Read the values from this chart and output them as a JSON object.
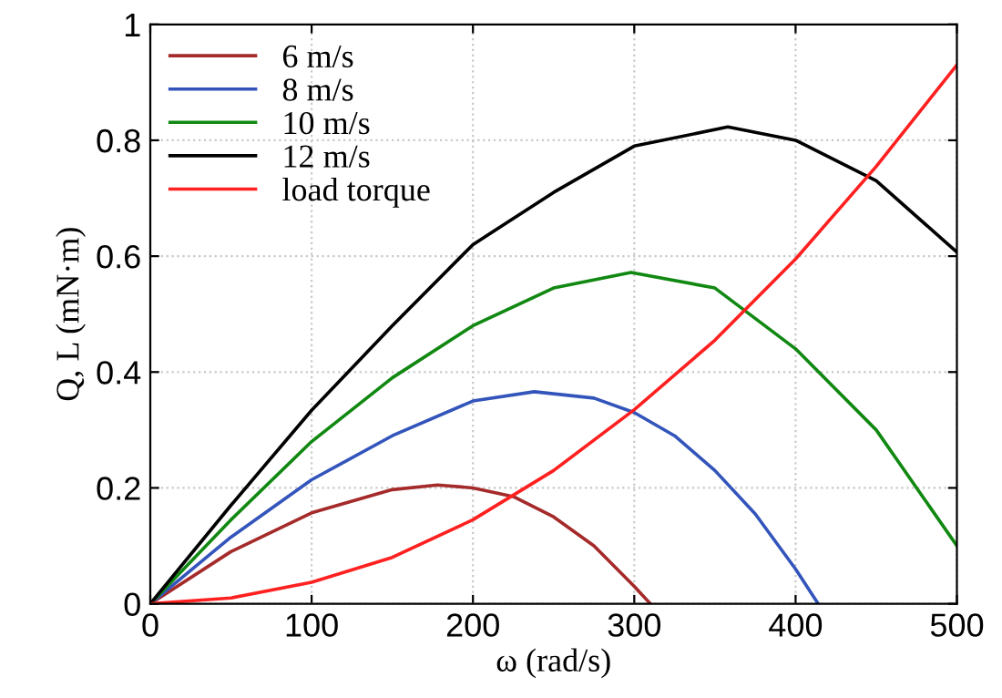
{
  "chart_data": {
    "type": "line",
    "xlabel": "ω (rad/s)",
    "ylabel": "Q, L (mN·m)",
    "xlim": [
      0,
      500
    ],
    "ylim": [
      0,
      1
    ],
    "xticks": [
      0,
      100,
      200,
      300,
      400,
      500
    ],
    "yticks": [
      0,
      0.2,
      0.4,
      0.6,
      0.8,
      1
    ],
    "grid": true,
    "legend": "top left",
    "marker": "none",
    "line_style": "solid",
    "series": [
      {
        "name": "6 m/s",
        "color": "#a52a2a",
        "x": [
          0,
          50,
          100,
          150,
          178,
          200,
          225,
          250,
          275,
          300,
          310
        ],
        "values": [
          0,
          0.09,
          0.157,
          0.197,
          0.205,
          0.2,
          0.185,
          0.15,
          0.1,
          0.03,
          0
        ]
      },
      {
        "name": "8 m/s",
        "color": "#3355bb",
        "x": [
          0,
          50,
          100,
          150,
          200,
          238,
          275,
          300,
          325,
          350,
          375,
          400,
          414
        ],
        "values": [
          0,
          0.115,
          0.214,
          0.29,
          0.35,
          0.366,
          0.355,
          0.33,
          0.29,
          0.23,
          0.155,
          0.06,
          0
        ]
      },
      {
        "name": "10 m/s",
        "color": "#118811",
        "x": [
          0,
          50,
          100,
          150,
          200,
          250,
          298,
          350,
          400,
          450,
          500
        ],
        "values": [
          0,
          0.145,
          0.28,
          0.39,
          0.48,
          0.545,
          0.572,
          0.545,
          0.44,
          0.3,
          0.1
        ]
      },
      {
        "name": "12 m/s",
        "color": "#000000",
        "x": [
          0,
          50,
          100,
          150,
          200,
          250,
          300,
          358,
          400,
          450,
          500
        ],
        "values": [
          0,
          0.17,
          0.334,
          0.48,
          0.62,
          0.71,
          0.79,
          0.823,
          0.8,
          0.73,
          0.607
        ]
      },
      {
        "name": "load torque",
        "color": "#ff2020",
        "x": [
          0,
          50,
          100,
          150,
          200,
          250,
          300,
          350,
          400,
          450,
          500
        ],
        "values": [
          0,
          0.01,
          0.037,
          0.08,
          0.145,
          0.23,
          0.335,
          0.455,
          0.595,
          0.755,
          0.93
        ]
      }
    ]
  }
}
